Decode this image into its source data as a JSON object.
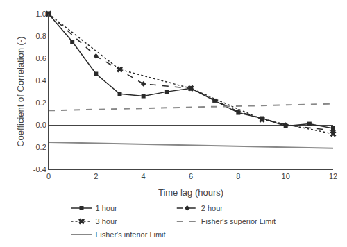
{
  "chart_data": {
    "type": "line",
    "xlabel": "Time lag (hours)",
    "ylabel": "Coefficient of Correlation (-)",
    "series": [
      {
        "name": "1 hour",
        "color": "#2a2a2a",
        "marker": "square",
        "line_style": "solid",
        "x": [
          0,
          1,
          2,
          3,
          4,
          5,
          6,
          7,
          8,
          9,
          10,
          11,
          12
        ],
        "values": [
          1.0,
          0.75,
          0.46,
          0.28,
          0.26,
          0.3,
          0.33,
          0.22,
          0.11,
          0.06,
          -0.01,
          0.01,
          -0.03
        ]
      },
      {
        "name": "2 hour",
        "color": "#2a2a2a",
        "marker": "diamond",
        "line_style": "dashed",
        "x": [
          0,
          2,
          4,
          6,
          8,
          10,
          12
        ],
        "values": [
          1.0,
          0.62,
          0.37,
          0.33,
          0.12,
          0.0,
          -0.05
        ]
      },
      {
        "name": "3 hour",
        "color": "#2a2a2a",
        "marker": "x",
        "line_style": "dotted",
        "x": [
          0,
          3,
          6,
          9,
          12
        ],
        "values": [
          1.0,
          0.5,
          0.33,
          0.05,
          -0.08
        ]
      },
      {
        "name": "Fisher's superior Limit",
        "color": "#888888",
        "line_style": "dashed",
        "x": [
          0,
          12
        ],
        "values": [
          0.13,
          0.19
        ]
      },
      {
        "name": "Fisher's inferior Limit",
        "color": "#888888",
        "line_style": "solid",
        "x": [
          0,
          12
        ],
        "values": [
          -0.155,
          -0.21
        ]
      }
    ],
    "xlim": [
      0,
      12
    ],
    "ylim": [
      -0.4,
      1.0
    ],
    "xticks": [
      0,
      2,
      4,
      6,
      8,
      10,
      12
    ],
    "yticks": [
      -0.4,
      -0.2,
      {
        "value": 0,
        "label": "0.0"
      },
      0.2,
      0.4,
      0.6,
      0.8,
      {
        "value": 1,
        "label": "1.0"
      }
    ],
    "grid": false,
    "legend": "bottom"
  }
}
